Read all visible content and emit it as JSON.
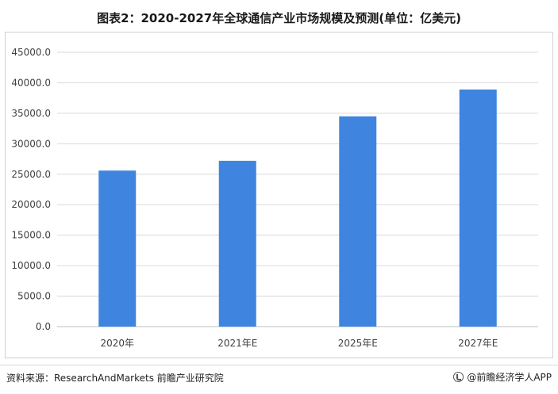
{
  "title": "图表2：2020-2027年全球通信产业市场规模及预测(单位：亿美元)",
  "source": "资料来源：ResearchAndMarkets 前瞻产业研究院",
  "brand": "@前瞻经济学人APP",
  "colors": {
    "bar": "#3f85e0",
    "grid": "#d9d9d9",
    "axis": "#bfbfbf",
    "tick_text": "#404040"
  },
  "chart_data": {
    "type": "bar",
    "title": "图表2：2020-2027年全球通信产业市场规模及预测(单位：亿美元)",
    "categories": [
      "2020年",
      "2021年E",
      "2025年E",
      "2027年E"
    ],
    "values": [
      25600,
      27200,
      34500,
      38900
    ],
    "ylim": [
      0,
      45000
    ],
    "ytick_step": 5000,
    "ytick_labels": [
      "0.0",
      "5000.0",
      "10000.0",
      "15000.0",
      "20000.0",
      "25000.0",
      "30000.0",
      "35000.0",
      "40000.0",
      "45000.0"
    ],
    "xlabel": "",
    "ylabel": "",
    "grid": true,
    "legend": "none"
  }
}
